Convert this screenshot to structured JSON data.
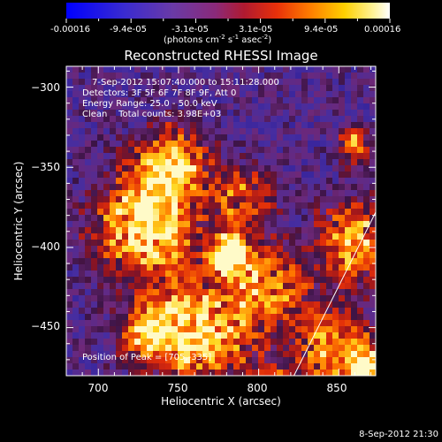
{
  "colorbar": {
    "tick_labels": [
      "-0.00016",
      "-9.4e-05",
      "-3.1e-05",
      "3.1e-05",
      "9.4e-05",
      "0.00016"
    ],
    "range": [
      -0.00016,
      0.00016
    ],
    "units_prefix": "(photons cm",
    "units_exp1": "-2",
    "units_mid": " s",
    "units_exp2": "-1",
    "units_mid2": " asec",
    "units_exp3": "-2",
    "units_suffix": ")"
  },
  "plot": {
    "title": "Reconstructed RHESSI Image",
    "annotations": [
      "7-Sep-2012 15:07:40.000 to 15:11:28.000",
      "Detectors: 3F 5F 6F 7F 8F 9F, Att 0",
      "Energy Range: 25.0 - 50.0 keV",
      "Clean    Total counts: 3.98E+03"
    ],
    "peak_label": "Position of Peak = [705,-335]",
    "timestamp": "8-Sep-2012 21:30"
  },
  "chart_data": {
    "type": "heatmap",
    "title": "Reconstructed RHESSI Image",
    "xlabel": "Heliocentric X (arcsec)",
    "ylabel": "Heliocentric Y (arcsec)",
    "xlim": [
      680,
      873
    ],
    "ylim": [
      -480,
      -287
    ],
    "x_ticks": [
      700,
      750,
      800,
      850
    ],
    "y_ticks": [
      -450,
      -400,
      -350,
      -300
    ],
    "peak": [
      705,
      -335
    ],
    "limb_line": [
      [
        822,
        -480
      ],
      [
        873,
        -378
      ]
    ],
    "colormap": "blue-purple-red-yellow-white"
  }
}
